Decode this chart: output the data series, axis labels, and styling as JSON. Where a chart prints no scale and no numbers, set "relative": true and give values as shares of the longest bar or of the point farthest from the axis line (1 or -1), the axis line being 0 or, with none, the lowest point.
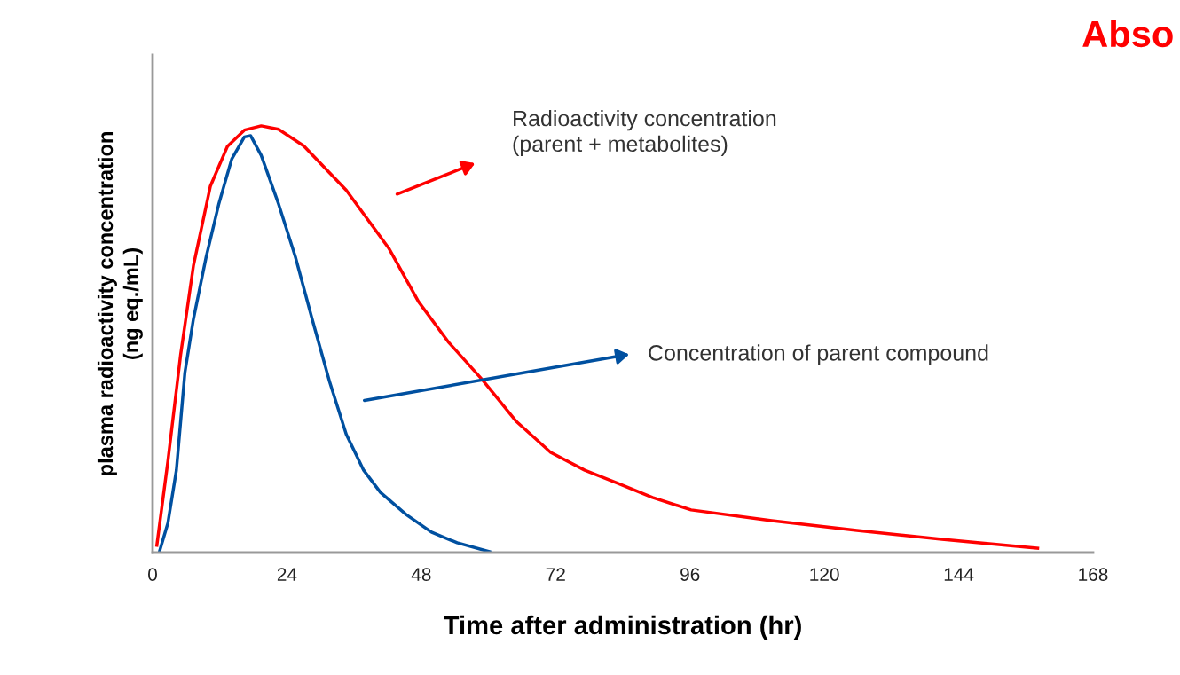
{
  "chart_data": {
    "type": "line",
    "relative": true,
    "title": "Abso",
    "xlabel": "Time after administration (hr)",
    "ylabel": "plasma radioactivity concentration\n(ng eq./mL)",
    "xlim": [
      0,
      168
    ],
    "xticks": [
      0,
      24,
      48,
      72,
      96,
      120,
      144,
      168
    ],
    "grid": false,
    "legend": false,
    "marker": "none",
    "line_style": "solid",
    "annotations": [
      "Radioactivity concentration\n(parent + metabolites)",
      "Concentration of parent compound"
    ],
    "series": [
      {
        "color": "#ff0000",
        "x": [
          0.76,
          2.73,
          5.01,
          7.29,
          10.33,
          13.37,
          16.4,
          19.4,
          22.5,
          27.0,
          34.6,
          42.2,
          47.5,
          52.8,
          58.9,
          65.0,
          71.1,
          77.2,
          83.2,
          89.3,
          96.2,
          110.6,
          125.8,
          141.0,
          158.1
        ],
        "values": [
          0.017,
          0.214,
          0.464,
          0.672,
          0.859,
          0.952,
          0.99,
          1.0,
          0.992,
          0.953,
          0.849,
          0.713,
          0.588,
          0.494,
          0.405,
          0.307,
          0.235,
          0.193,
          0.162,
          0.129,
          0.1,
          0.075,
          0.052,
          0.031,
          0.01
        ]
      },
      {
        "color": "#0050a0",
        "x": [
          1.22,
          2.73,
          4.25,
          5.77,
          7.29,
          9.57,
          11.85,
          14.13,
          16.4,
          17.5,
          19.4,
          22.5,
          25.5,
          28.5,
          31.6,
          34.6,
          37.7,
          40.7,
          45.3,
          49.8,
          54.4,
          60.2
        ],
        "values": [
          0.002,
          0.069,
          0.193,
          0.422,
          0.547,
          0.693,
          0.818,
          0.922,
          0.974,
          0.977,
          0.931,
          0.817,
          0.693,
          0.547,
          0.401,
          0.277,
          0.193,
          0.141,
          0.089,
          0.048,
          0.023,
          0.002
        ]
      }
    ]
  }
}
